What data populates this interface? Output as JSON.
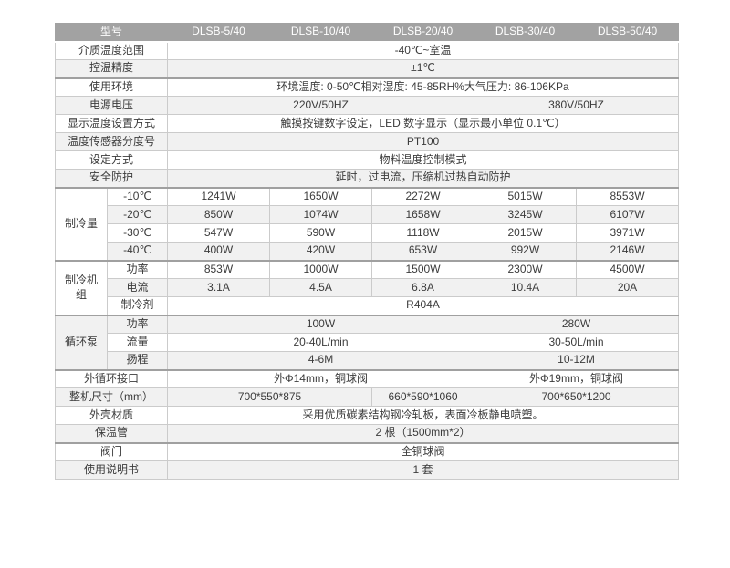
{
  "colors": {
    "header_bg": "#a2a2a2",
    "header_text": "#ffffff",
    "row_alt_bg": "#f1f1f1",
    "border": "#cbcbcb",
    "section_border": "#a0a0a0",
    "text": "#3b3b3b"
  },
  "table": {
    "header": {
      "label": "型号",
      "models": [
        "DLSB-5/40",
        "DLSB-10/40",
        "DLSB-20/40",
        "DLSB-30/40",
        "DLSB-50/40"
      ]
    },
    "rows": [
      {
        "label": "介质温度范围",
        "cells": [
          {
            "text": "-40℃~室温",
            "span": 5
          }
        ]
      },
      {
        "label": "控温精度",
        "cells": [
          {
            "text": "±1℃",
            "span": 5
          }
        ]
      },
      {
        "label": "使用环境",
        "cells": [
          {
            "text": "环境温度: 0-50℃相对湿度: 45-85RH%大气压力: 86-106KPa",
            "span": 5
          }
        ]
      },
      {
        "label": "电源电压",
        "cells": [
          {
            "text": "220V/50HZ",
            "span": 3
          },
          {
            "text": "380V/50HZ",
            "span": 2
          }
        ]
      },
      {
        "label": "显示温度设置方式",
        "cells": [
          {
            "text": "触摸按键数字设定，LED 数字显示（显示最小单位 0.1℃）",
            "span": 5
          }
        ]
      },
      {
        "label": "温度传感器分度号",
        "cells": [
          {
            "text": "PT100",
            "span": 5
          }
        ]
      },
      {
        "label": "设定方式",
        "cells": [
          {
            "text": "物料温度控制模式",
            "span": 5
          }
        ]
      },
      {
        "label": "安全防护",
        "cells": [
          {
            "text": "延时，过电流，压缩机过热自动防护",
            "span": 5
          }
        ]
      },
      {
        "group": "制冷量",
        "group_rows": 4,
        "sub": true,
        "label": "-10℃",
        "cells": [
          {
            "text": "1241W",
            "span": 1
          },
          {
            "text": "1650W",
            "span": 1
          },
          {
            "text": "2272W",
            "span": 1
          },
          {
            "text": "5015W",
            "span": 1
          },
          {
            "text": "8553W",
            "span": 1
          }
        ]
      },
      {
        "sub": true,
        "label": "-20℃",
        "cells": [
          {
            "text": "850W",
            "span": 1
          },
          {
            "text": "1074W",
            "span": 1
          },
          {
            "text": "1658W",
            "span": 1
          },
          {
            "text": "3245W",
            "span": 1
          },
          {
            "text": "6107W",
            "span": 1
          }
        ]
      },
      {
        "sub": true,
        "label": "-30℃",
        "cells": [
          {
            "text": "547W",
            "span": 1
          },
          {
            "text": "590W",
            "span": 1
          },
          {
            "text": "1118W",
            "span": 1
          },
          {
            "text": "2015W",
            "span": 1
          },
          {
            "text": "3971W",
            "span": 1
          }
        ]
      },
      {
        "sub": true,
        "label": "-40℃",
        "cells": [
          {
            "text": "400W",
            "span": 1
          },
          {
            "text": "420W",
            "span": 1
          },
          {
            "text": "653W",
            "span": 1
          },
          {
            "text": "992W",
            "span": 1
          },
          {
            "text": "2146W",
            "span": 1
          }
        ]
      },
      {
        "group": "制冷机组",
        "group_rows": 3,
        "sub": true,
        "label": "功率",
        "cells": [
          {
            "text": "853W",
            "span": 1
          },
          {
            "text": "1000W",
            "span": 1
          },
          {
            "text": "1500W",
            "span": 1
          },
          {
            "text": "2300W",
            "span": 1
          },
          {
            "text": "4500W",
            "span": 1
          }
        ]
      },
      {
        "sub": true,
        "label": "电流",
        "cells": [
          {
            "text": "3.1A",
            "span": 1
          },
          {
            "text": "4.5A",
            "span": 1
          },
          {
            "text": "6.8A",
            "span": 1
          },
          {
            "text": "10.4A",
            "span": 1
          },
          {
            "text": "20A",
            "span": 1
          }
        ]
      },
      {
        "sub": true,
        "label": "制冷剂",
        "cells": [
          {
            "text": "R404A",
            "span": 5
          }
        ]
      },
      {
        "group": "循环泵",
        "group_rows": 3,
        "sub": true,
        "label": "功率",
        "cells": [
          {
            "text": "100W",
            "span": 3
          },
          {
            "text": "280W",
            "span": 2
          }
        ]
      },
      {
        "sub": true,
        "label": "流量",
        "cells": [
          {
            "text": "20-40L/min",
            "span": 3
          },
          {
            "text": "30-50L/min",
            "span": 2
          }
        ]
      },
      {
        "sub": true,
        "label": "扬程",
        "cells": [
          {
            "text": "4-6M",
            "span": 3
          },
          {
            "text": "10-12M",
            "span": 2
          }
        ]
      },
      {
        "label": "外循环接口",
        "cells": [
          {
            "text": "外Φ14mm，铜球阀",
            "span": 3
          },
          {
            "text": "外Φ19mm，铜球阀",
            "span": 2
          }
        ]
      },
      {
        "label": "整机尺寸（mm）",
        "cells": [
          {
            "text": "700*550*875",
            "span": 2
          },
          {
            "text": "660*590*1060",
            "span": 1
          },
          {
            "text": "700*650*1200",
            "span": 2
          }
        ]
      },
      {
        "label": "外壳材质",
        "cells": [
          {
            "text": "采用优质碳素结构钢冷轧板，表面冷板静电喷塑。",
            "span": 5
          }
        ]
      },
      {
        "label": "保温管",
        "cells": [
          {
            "text": "2 根（1500mm*2）",
            "span": 5
          }
        ]
      },
      {
        "label": "阀门",
        "cells": [
          {
            "text": "全铜球阀",
            "span": 5
          }
        ]
      },
      {
        "label": "使用说明书",
        "cells": [
          {
            "text": "1 套",
            "span": 5
          }
        ]
      }
    ]
  }
}
